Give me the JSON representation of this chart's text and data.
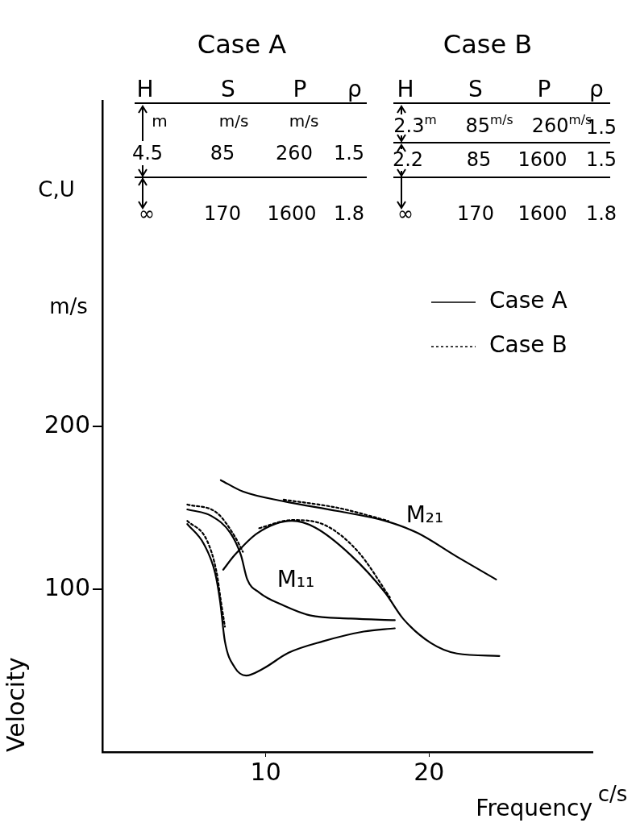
{
  "chart_data": {
    "type": "line",
    "xlabel": "Frequency",
    "ylabel": "Velocity",
    "xlim": [
      0,
      30
    ],
    "ylim": [
      0,
      400
    ],
    "xticks": [
      10,
      20
    ],
    "yticks": [
      100,
      200
    ],
    "grid": false,
    "legend": "right",
    "marker": "none",
    "annotations": [
      "Case A",
      "Case B",
      "C,U",
      "m/s",
      "c/s",
      "H",
      "S",
      "P",
      "ρ",
      "m",
      "m/s",
      "m/s",
      "4.5",
      "85",
      "260",
      "1.5",
      "∞",
      "170",
      "1600",
      "1.8",
      "H",
      "S",
      "P",
      "ρ",
      "2.3$^{m}$",
      "85$^{m/s}$",
      "260$^{m/s}$",
      "1.5",
      "2.2",
      "85",
      "1600",
      "1.5",
      "∞",
      "170",
      "1600",
      "1.8",
      "M₂₁",
      "M₁₁"
    ],
    "series": [
      {
        "name": "Case A",
        "color": "#000000",
        "line_style": "solid",
        "x": [
          5.2,
          6.67,
          7.84,
          8.48,
          8.87,
          9.6,
          11.1,
          12.7,
          15.2,
          17.9
        ],
        "values": [
          149,
          145,
          134.5,
          121,
          106,
          98,
          90,
          84,
          82,
          81
        ]
      },
      {
        "color": "#000000",
        "line_style": "solid",
        "x": [
          5.2,
          6.2,
          6.9,
          7.2,
          7.5,
          8.1,
          8.8,
          9.8,
          11.4,
          13.5,
          16,
          17.9
        ],
        "values": [
          140,
          128,
          110,
          93,
          68,
          52,
          47,
          51,
          61,
          68,
          74,
          76
        ]
      },
      {
        "color": "#000000",
        "line_style": "solid",
        "x": [
          7.25,
          8.6,
          11.1,
          14.4,
          17.3,
          19.3,
          21.7,
          24.1
        ],
        "values": [
          167,
          160,
          154,
          148,
          142,
          134.5,
          120,
          106
        ]
      },
      {
        "color": "#000000",
        "line_style": "solid",
        "x": [
          7.4,
          8.1,
          9.5,
          11.6,
          13,
          15.2,
          17.3,
          18.4,
          20.1,
          21.7,
          24.3
        ],
        "values": [
          112,
          121,
          134.5,
          142,
          138,
          121,
          98,
          82,
          67,
          60.5,
          59
        ]
      },
      {
        "name": "Case B",
        "color": "#000000",
        "line_style": "dotted",
        "x": [
          5.2,
          7,
          8.1,
          8.6
        ],
        "values": [
          152,
          147,
          132.5,
          123
        ]
      },
      {
        "color": "#000000",
        "line_style": "dotted",
        "x": [
          5.2,
          6.4,
          7,
          7.25,
          7.5
        ],
        "values": [
          142,
          130,
          110,
          93,
          77
        ]
      },
      {
        "color": "#000000",
        "line_style": "dotted",
        "x": [
          11.1,
          14.4,
          17.5
        ],
        "values": [
          155,
          150,
          142
        ]
      },
      {
        "color": "#000000",
        "line_style": "dotted",
        "x": [
          9.6,
          11.6,
          13.7,
          15.7,
          17.6
        ],
        "values": [
          137.5,
          142.5,
          139,
          122.5,
          95
        ]
      }
    ]
  }
}
